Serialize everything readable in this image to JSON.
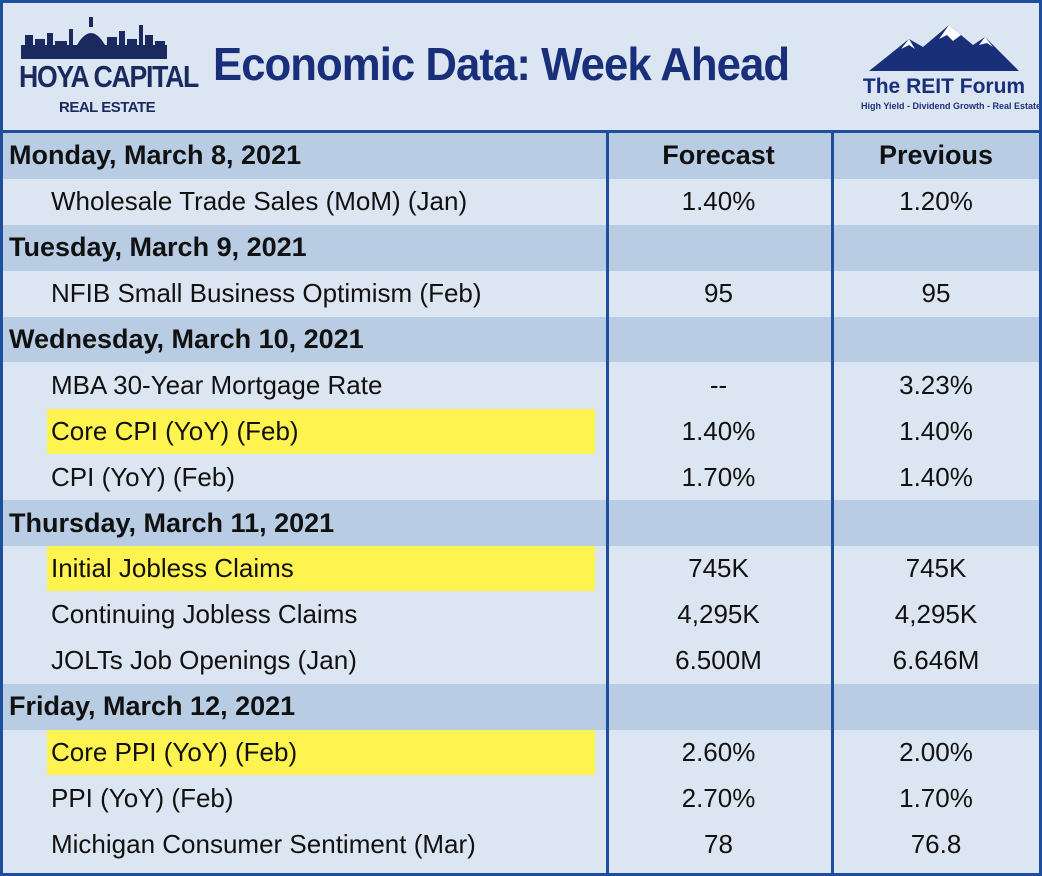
{
  "header": {
    "left_logo_text": "HOYA CAPITAL",
    "left_logo_sub": "REAL ESTATE",
    "title": "Economic Data: Week Ahead",
    "right_logo_text": "The REIT Forum",
    "right_logo_sub": "High Yield - Dividend Growth - Real Estate"
  },
  "columns": {
    "forecast": "Forecast",
    "previous": "Previous"
  },
  "rows": [
    {
      "type": "day",
      "label": "Monday, March 8, 2021",
      "forecast": "Forecast",
      "previous": "Previous"
    },
    {
      "type": "item",
      "label": "Wholesale Trade Sales (MoM) (Jan)",
      "forecast": "1.40%",
      "previous": "1.20%",
      "highlight": false
    },
    {
      "type": "day",
      "label": "Tuesday, March 9, 2021",
      "forecast": "",
      "previous": ""
    },
    {
      "type": "item",
      "label": "NFIB Small Business Optimism (Feb)",
      "forecast": "95",
      "previous": "95",
      "highlight": false
    },
    {
      "type": "day",
      "label": "Wednesday, March 10, 2021",
      "forecast": "",
      "previous": ""
    },
    {
      "type": "item",
      "label": "MBA 30-Year Mortgage Rate",
      "forecast": "--",
      "previous": "3.23%",
      "highlight": false
    },
    {
      "type": "item",
      "label": "Core CPI (YoY) (Feb)",
      "forecast": "1.40%",
      "previous": "1.40%",
      "highlight": true
    },
    {
      "type": "item",
      "label": "CPI (YoY) (Feb)",
      "forecast": "1.70%",
      "previous": "1.40%",
      "highlight": false
    },
    {
      "type": "day",
      "label": "Thursday, March 11, 2021",
      "forecast": "",
      "previous": ""
    },
    {
      "type": "item",
      "label": "Initial Jobless Claims",
      "forecast": "745K",
      "previous": "745K",
      "highlight": true
    },
    {
      "type": "item",
      "label": "Continuing Jobless Claims",
      "forecast": "4,295K",
      "previous": "4,295K",
      "highlight": false
    },
    {
      "type": "item",
      "label": "JOLTs Job Openings (Jan)",
      "forecast": "6.500M",
      "previous": "6.646M",
      "highlight": false
    },
    {
      "type": "day",
      "label": "Friday, March 12, 2021",
      "forecast": "",
      "previous": ""
    },
    {
      "type": "item",
      "label": "Core PPI (YoY) (Feb)",
      "forecast": "2.60%",
      "previous": "2.00%",
      "highlight": true
    },
    {
      "type": "item",
      "label": "PPI (YoY) (Feb)",
      "forecast": "2.70%",
      "previous": "1.70%",
      "highlight": false
    },
    {
      "type": "item",
      "label": "Michigan Consumer Sentiment (Mar)",
      "forecast": "78",
      "previous": "76.8",
      "highlight": false
    }
  ],
  "colors": {
    "border": "#1f4e9c",
    "day_row": "#b8cce4",
    "item_row": "#dce6f2",
    "highlight": "#fff34f",
    "title": "#1a2f7a"
  },
  "icons": {
    "left_logo": "city-skyline-icon",
    "right_logo": "mountains-icon"
  }
}
